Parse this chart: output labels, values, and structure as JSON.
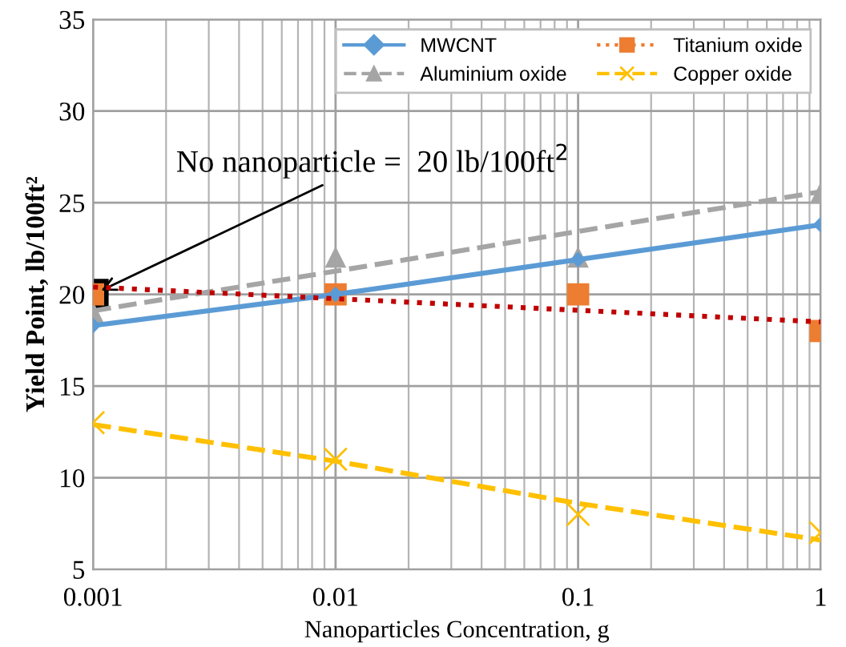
{
  "chart_data": {
    "type": "line",
    "xlabel": "Nanoparticles Concentration, g",
    "ylabel": "Yield Point, lb/100ft²",
    "log": "x",
    "xlim": [
      0.001,
      1
    ],
    "xticks": [
      0.001,
      0.01,
      0.1,
      1
    ],
    "ylim": [
      5,
      35
    ],
    "yticks": [
      5,
      10,
      15,
      20,
      25,
      30,
      35
    ],
    "grid": true,
    "legend": "top right",
    "annotations": [
      {
        "text": "No nanoparticle =  20 lb/100ft$^{2}$",
        "x": 0.001,
        "y": 20
      }
    ],
    "series": [
      {
        "name": "MWCNT",
        "color": "#5b9bd5",
        "x": [
          0.001,
          0.01,
          0.1,
          1
        ],
        "values": [
          18.3,
          20.0,
          21.9,
          23.8
        ],
        "marker": "diamond",
        "line_style": "solid"
      },
      {
        "name": "Aluminium oxide",
        "type": "scatter",
        "color": "#a5a5a5",
        "x": [
          0.001,
          0.01,
          0.1,
          1
        ],
        "values": [
          19,
          22,
          22,
          25.5
        ],
        "marker": "triangle",
        "line_style": "dashed"
      },
      {
        "color": "#a5a5a5",
        "x": [
          0.001,
          1
        ],
        "values": [
          19.1,
          25.6
        ],
        "marker": "none",
        "line_style": "dashed"
      },
      {
        "name": "Titanium oxide",
        "type": "scatter",
        "color": "#ed7d31",
        "x": [
          0.001,
          0.01,
          0.1,
          1
        ],
        "values": [
          20,
          20,
          20,
          18
        ],
        "marker": "square",
        "line_style": "dotted"
      },
      {
        "color": "#c00000",
        "x": [
          0.001,
          1
        ],
        "values": [
          20.4,
          18.5
        ],
        "marker": "none",
        "line_style": "dotted"
      },
      {
        "name": "Copper oxide",
        "type": "scatter",
        "color": "#ffc000",
        "x": [
          0.001,
          0.01,
          0.1,
          1
        ],
        "values": [
          13,
          11,
          8,
          7
        ],
        "marker": "cross",
        "line_style": "dashed"
      },
      {
        "color": "#ffc000",
        "x": [
          0.001,
          0.01,
          0.1,
          1
        ],
        "values": [
          12.9,
          10.9,
          8.6,
          6.6
        ],
        "marker": "none",
        "line_style": "dashed"
      },
      {
        "type": "scatter",
        "color": "#000000",
        "x": [
          0.001
        ],
        "values": [
          20
        ],
        "marker": "square"
      }
    ]
  }
}
